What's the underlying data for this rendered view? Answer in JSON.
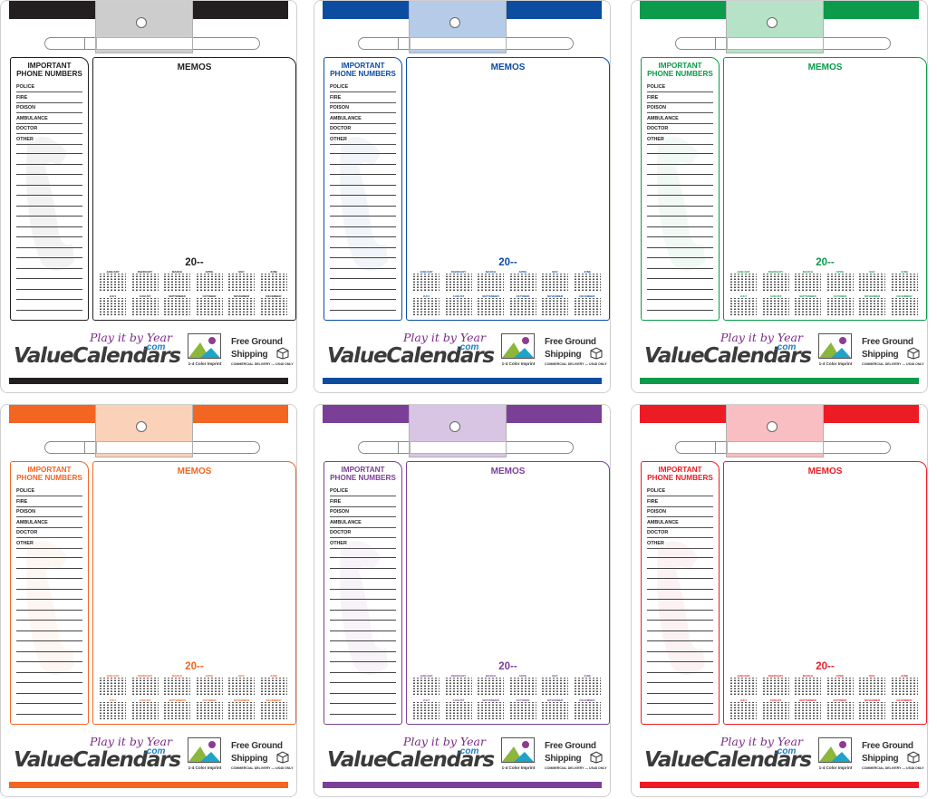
{
  "template": {
    "phone_title_line1": "IMPORTANT",
    "phone_title_line2": "PHONE NUMBERS",
    "phone_labels": [
      "POLICE",
      "FIRE",
      "POISON",
      "AMBULANCE",
      "DOCTOR",
      "OTHER"
    ],
    "memo_title": "MEMOS",
    "year": "20--",
    "months": [
      "JANUARY",
      "FEBRUARY",
      "MARCH",
      "APRIL",
      "MAY",
      "JUNE",
      "JULY",
      "AUGUST",
      "SEPTEMBER",
      "OCTOBER",
      "NOVEMBER",
      "DECEMBER"
    ],
    "tagline": "Play it by Year",
    "logo_text": "ValueCalendars",
    "logo_suffix": ".com",
    "imprint_label": "1-4 Color Imprint",
    "shipping_line1": "Free Ground",
    "shipping_line2": "Shipping",
    "shipping_note": "COMMERCIAL DELIVERY — US48 ONLY"
  },
  "cards": [
    {
      "color_name": "black",
      "accent": "#231f20",
      "light": "#b3b3b3",
      "text_color": "#231f20",
      "hand": "#999999"
    },
    {
      "color_name": "blue",
      "accent": "#0c4da2",
      "light": "#8fb0dc",
      "text_color": "#0c4da2",
      "hand": "#8fb0dc"
    },
    {
      "color_name": "green",
      "accent": "#0b9b4a",
      "light": "#8fd4a9",
      "text_color": "#0b9b4a",
      "hand": "#8fd4a9"
    },
    {
      "color_name": "orange",
      "accent": "#f26522",
      "light": "#f8b994",
      "text_color": "#f26522",
      "hand": "#f8b994"
    },
    {
      "color_name": "purple",
      "accent": "#7b3f98",
      "light": "#c3a6d4",
      "text_color": "#7b3f98",
      "hand": "#c3a6d4"
    },
    {
      "color_name": "red",
      "accent": "#ed1c24",
      "light": "#f49ca0",
      "text_color": "#ed1c24",
      "hand": "#f49ca0"
    }
  ]
}
